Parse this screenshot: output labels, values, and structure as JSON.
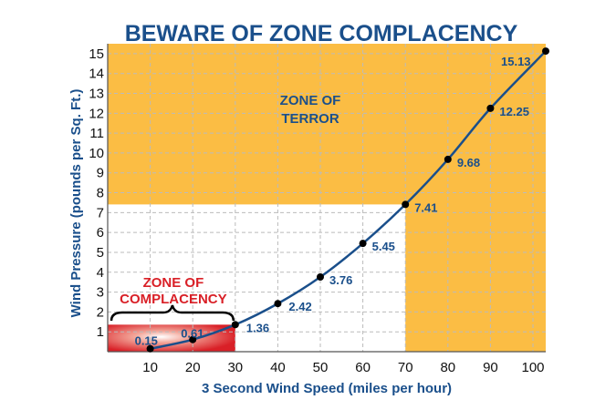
{
  "chart_data": {
    "type": "line",
    "title": "BEWARE OF ZONE COMPLACENCY",
    "xlabel": "3 Second Wind Speed (miles per hour)",
    "ylabel": "Wind Pressure (pounds per Sq. Ft.)",
    "xlim": [
      0,
      103
    ],
    "ylim": [
      0,
      15.5
    ],
    "xticks": [
      10,
      20,
      30,
      40,
      50,
      60,
      70,
      80,
      90,
      100
    ],
    "yticks": [
      1,
      2,
      3,
      4,
      5,
      6,
      7,
      8,
      9,
      10,
      11,
      12,
      13,
      14,
      15
    ],
    "grid": true,
    "series": [
      {
        "x": [
          10,
          20,
          30,
          40,
          50,
          60,
          70,
          80,
          90,
          103
        ],
        "y": [
          0.15,
          0.61,
          1.36,
          2.42,
          3.76,
          5.45,
          7.41,
          9.68,
          12.25,
          15.13
        ],
        "labels": [
          "0.15",
          "0.61",
          "1.36",
          "2.42",
          "3.76",
          "5.45",
          "7.41",
          "9.68",
          "12.25",
          "15.13"
        ]
      }
    ],
    "zones": [
      {
        "label_lines": [
          "ZONE OF",
          "TERROR"
        ],
        "color": "#fbbd44",
        "text_color": "#1a4f8b"
      },
      {
        "label_lines": [
          "ZONE OF",
          "COMPLACENCY"
        ],
        "color": "#d92027",
        "text_color": "#d92027"
      }
    ],
    "colors": {
      "line": "#1a4f8b",
      "point": "#000000",
      "grid": "#bbbbbb"
    }
  }
}
